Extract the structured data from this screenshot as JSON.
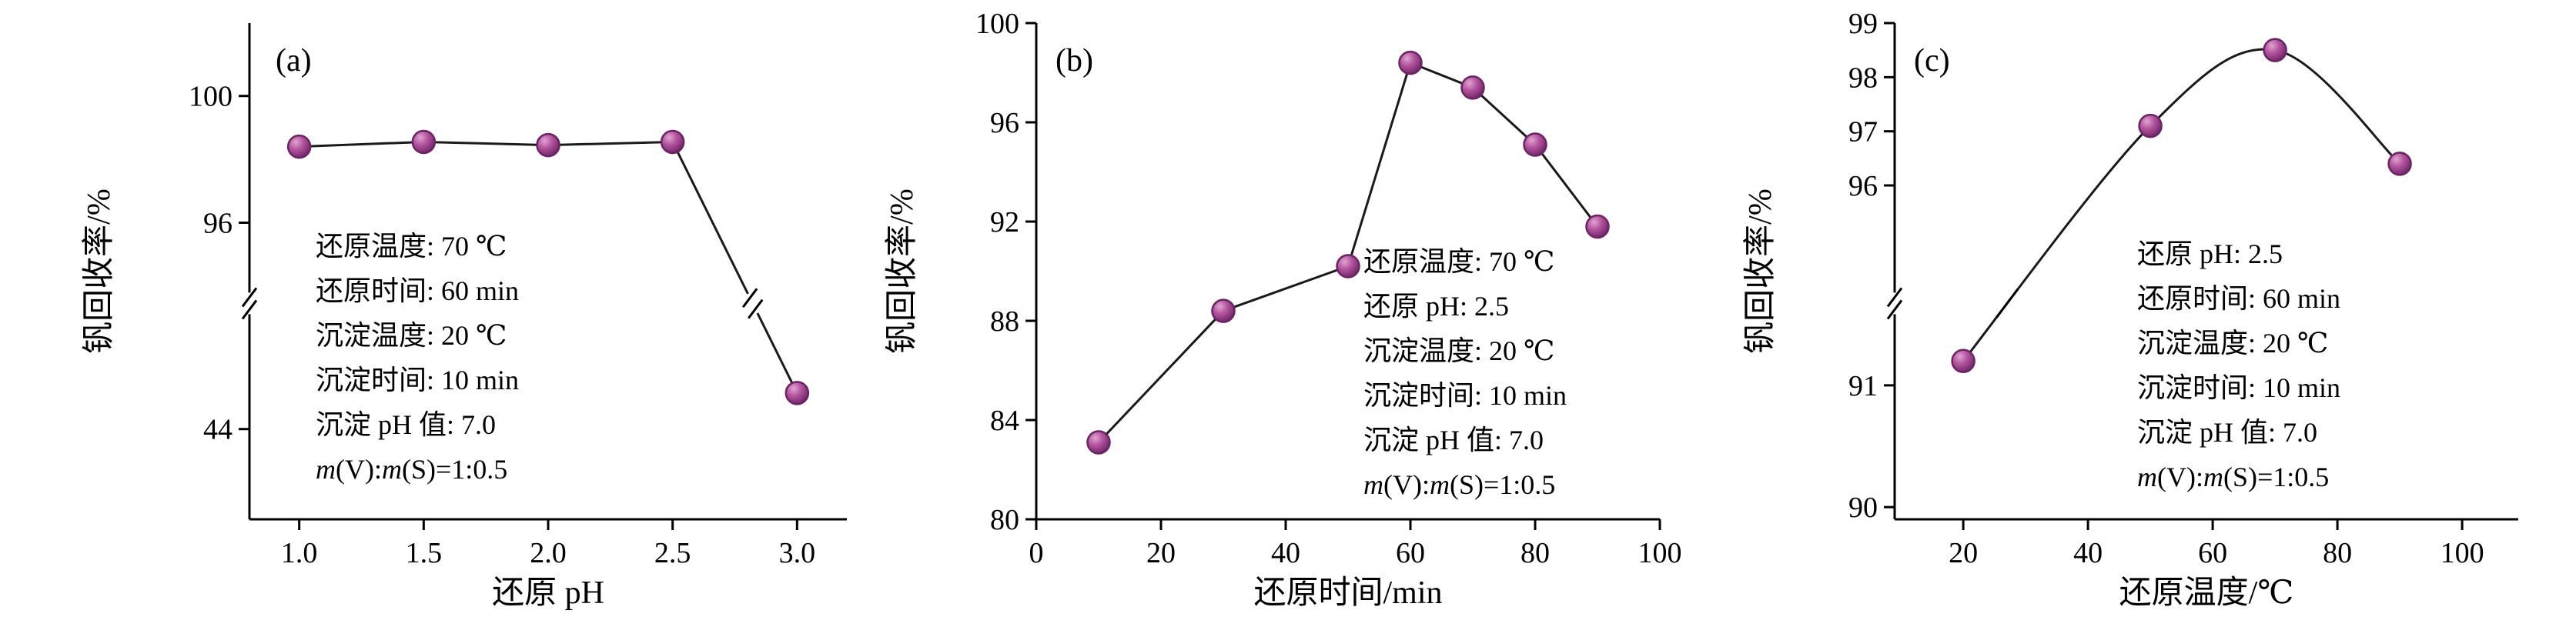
{
  "style": {
    "background": "#ffffff",
    "axis_color": "#000000",
    "text_color": "#000000",
    "line_color": "#1a1a1a",
    "marker_fill": "#b4539f",
    "marker_highlight": "#e0a5cf",
    "marker_edge": "#6b2463"
  },
  "chart_data": [
    {
      "id": "a",
      "type": "line",
      "panel_label": "(a)",
      "xlabel": "还原 pH",
      "ylabel": "钒回收率/%",
      "curve": "linear",
      "x": [
        1.0,
        1.5,
        2.0,
        2.5,
        3.0
      ],
      "y": [
        98.4,
        98.55,
        98.45,
        98.55,
        45.0
      ],
      "xlim": [
        0.8,
        3.2
      ],
      "x_ticks": [
        {
          "v": 1.0,
          "label": "1.0"
        },
        {
          "v": 1.5,
          "label": "1.5"
        },
        {
          "v": 2.0,
          "label": "2.0"
        },
        {
          "v": 2.5,
          "label": "2.5"
        },
        {
          "v": 3.0,
          "label": "3.0"
        }
      ],
      "y_axis": {
        "broken": true,
        "break_frac": 0.565,
        "segments": [
          {
            "top_value": 102.3,
            "bottom_value": 94.0,
            "top_frac": 0.0,
            "bottom_frac": 0.53
          },
          {
            "top_value": 47.0,
            "bottom_value": 41.5,
            "top_frac": 0.6,
            "bottom_frac": 1.0
          }
        ],
        "ticks": [
          {
            "v": 100,
            "label": "100"
          },
          {
            "v": 96,
            "label": "96"
          },
          {
            "v": 44,
            "label": "44"
          }
        ]
      },
      "annotation": [
        "还原温度: 70 ℃",
        "还原时间: 60 min",
        "沉淀温度: 20 ℃",
        "沉淀时间: 10 min",
        "沉淀 pH 值: 7.0",
        "m(V):m(S)=1:0.5"
      ]
    },
    {
      "id": "b",
      "type": "line",
      "panel_label": "(b)",
      "xlabel": "还原时间/min",
      "ylabel": "钒回收率/%",
      "curve": "linear",
      "x": [
        10,
        30,
        50,
        60,
        70,
        80,
        90
      ],
      "y": [
        83.1,
        88.4,
        90.2,
        98.4,
        97.4,
        95.1,
        91.8
      ],
      "xlim": [
        0,
        100
      ],
      "x_ticks": [
        {
          "v": 0,
          "label": "0"
        },
        {
          "v": 20,
          "label": "20"
        },
        {
          "v": 40,
          "label": "40"
        },
        {
          "v": 60,
          "label": "60"
        },
        {
          "v": 80,
          "label": "80"
        },
        {
          "v": 100,
          "label": "100"
        }
      ],
      "y_axis": {
        "broken": false,
        "break_frac": 0,
        "segments": [
          {
            "top_value": 100,
            "bottom_value": 80,
            "top_frac": 0.0,
            "bottom_frac": 1.0
          }
        ],
        "ticks": [
          {
            "v": 100,
            "label": "100"
          },
          {
            "v": 96,
            "label": "96"
          },
          {
            "v": 92,
            "label": "92"
          },
          {
            "v": 88,
            "label": "88"
          },
          {
            "v": 84,
            "label": "84"
          },
          {
            "v": 80,
            "label": "80"
          }
        ]
      },
      "annotation": [
        "还原温度: 70 ℃",
        "还原 pH: 2.5",
        "沉淀温度: 20 ℃",
        "沉淀时间: 10 min",
        "沉淀 pH 值: 7.0",
        "m(V):m(S)=1:0.5"
      ]
    },
    {
      "id": "c",
      "type": "line",
      "panel_label": "(c)",
      "xlabel": "还原温度/℃",
      "ylabel": "钒回收率/%",
      "curve": "smooth",
      "x": [
        20,
        50,
        70,
        90
      ],
      "y": [
        91.2,
        97.1,
        98.5,
        96.4
      ],
      "xlim": [
        9,
        109
      ],
      "x_ticks": [
        {
          "v": 20,
          "label": "20"
        },
        {
          "v": 40,
          "label": "40"
        },
        {
          "v": 60,
          "label": "60"
        },
        {
          "v": 80,
          "label": "80"
        },
        {
          "v": 100,
          "label": "100"
        }
      ],
      "y_axis": {
        "broken": true,
        "break_frac": 0.565,
        "segments": [
          {
            "top_value": 99.0,
            "bottom_value": 94.14,
            "top_frac": 0.0,
            "bottom_frac": 0.53
          },
          {
            "top_value": 91.53,
            "bottom_value": 89.9,
            "top_frac": 0.6,
            "bottom_frac": 1.0
          }
        ],
        "ticks": [
          {
            "v": 99,
            "label": "99"
          },
          {
            "v": 98,
            "label": "98"
          },
          {
            "v": 97,
            "label": "97"
          },
          {
            "v": 96,
            "label": "96"
          },
          {
            "v": 91,
            "label": "91"
          },
          {
            "v": 90,
            "label": "90"
          }
        ]
      },
      "annotation": [
        "还原 pH: 2.5",
        "还原时间: 60 min",
        "沉淀温度: 20 ℃",
        "沉淀时间: 10 min",
        "沉淀 pH 值: 7.0",
        "m(V):m(S)=1:0.5"
      ]
    }
  ]
}
